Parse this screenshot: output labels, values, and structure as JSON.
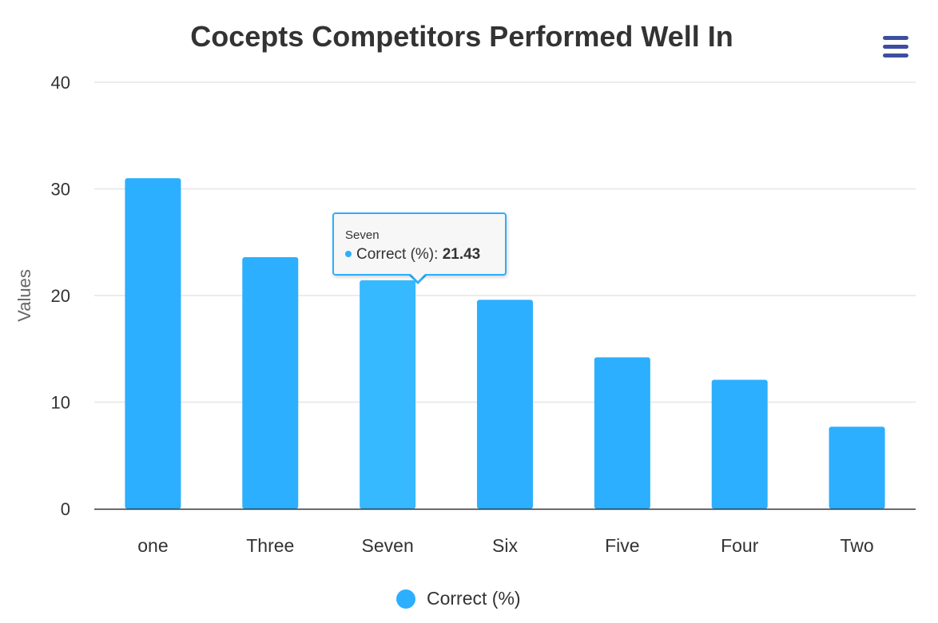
{
  "chart_data": {
    "type": "bar",
    "title": "Cocepts Competitors Performed Well In",
    "xlabel": "",
    "ylabel": "Values",
    "categories": [
      "one",
      "Three",
      "Seven",
      "Six",
      "Five",
      "Four",
      "Two"
    ],
    "series": [
      {
        "name": "Correct (%)",
        "values": [
          31.0,
          23.6,
          21.43,
          19.6,
          14.2,
          12.1,
          7.7
        ]
      }
    ],
    "ylim": [
      0,
      40
    ],
    "yticks": [
      0,
      10,
      20,
      30,
      40
    ],
    "grid": true,
    "legend_position": "bottom-center",
    "highlighted_category": "Seven"
  },
  "tooltip": {
    "header": "Seven",
    "series_label": "Correct (%)",
    "value": "21.43"
  },
  "legend": {
    "label": "Correct (%)"
  },
  "menu": {
    "icon": "hamburger-menu-icon"
  },
  "colors": {
    "bar": "#2caffe",
    "bar_hover": "#36b9ff",
    "menu": "#3b4f9e",
    "title": "#333333",
    "axis_label": "#666666",
    "tick_label": "#333333",
    "grid": "#e6e6e6",
    "axis_line": "#333333"
  }
}
